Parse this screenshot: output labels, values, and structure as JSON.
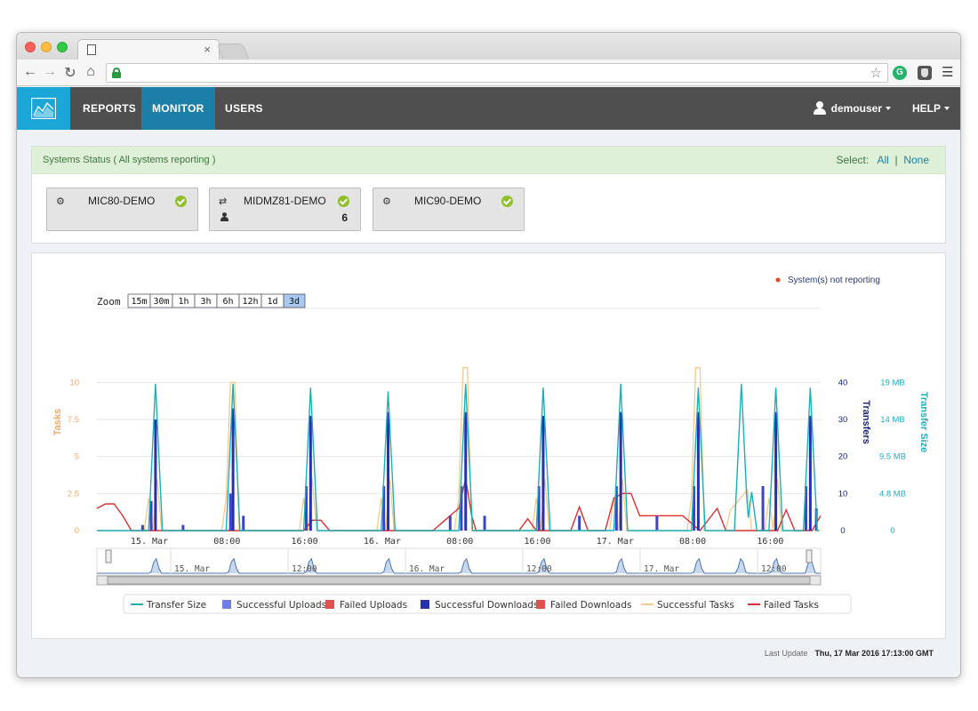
{
  "nav": {
    "items": [
      "REPORTS",
      "MONITOR",
      "USERS"
    ],
    "active": "MONITOR",
    "user": "demouser",
    "help": "HELP"
  },
  "status": {
    "text": "Systems Status ( All systems reporting )",
    "select_label": "Select:",
    "select_all": "All",
    "select_sep": "|",
    "select_none": "None",
    "systems": [
      {
        "name": "MIC80-DEMO",
        "icon": "gears-icon",
        "ok": true
      },
      {
        "name": "MIDMZ81-DEMO",
        "icon": "exchange-icon",
        "ok": true,
        "users": "6"
      },
      {
        "name": "MIC90-DEMO",
        "icon": "gears-icon",
        "ok": true
      }
    ]
  },
  "chart_data": {
    "type": "line",
    "not_reporting_label": "System(s) not reporting",
    "zoom_label": "Zoom",
    "zoom_options": [
      "15m",
      "30m",
      "1h",
      "3h",
      "6h",
      "12h",
      "1d",
      "3d"
    ],
    "zoom_selected": "3d",
    "x_tick_labels": [
      "15. Mar",
      "08:00",
      "16:00",
      "16. Mar",
      "08:00",
      "16:00",
      "17. Mar",
      "08:00",
      "16:00"
    ],
    "navigator_labels": [
      "15. Mar",
      "12:00",
      "16. Mar",
      "12:00",
      "17. Mar",
      "12:00"
    ],
    "y_axes": [
      {
        "label": "Tasks",
        "ticks": [
          "0",
          "2.5",
          "5",
          "7.5",
          "10"
        ],
        "max": 12,
        "color": "#f0a868"
      },
      {
        "label": "Transfers",
        "ticks": [
          "0",
          "10",
          "20",
          "30",
          "40"
        ],
        "max": 48,
        "color": "#1a237e"
      },
      {
        "label": "Transfer Size",
        "ticks": [
          "0",
          "4.8 MB",
          "9.5 MB",
          "14 MB",
          "19 MB"
        ],
        "max": 23,
        "color": "#1ab0c0"
      }
    ],
    "legend": [
      {
        "name": "Transfer Size",
        "color": "#1ab0b8",
        "kind": "line"
      },
      {
        "name": "Successful Uploads",
        "color": "#6f7fe8",
        "kind": "box"
      },
      {
        "name": "Failed Uploads",
        "color": "#e05050",
        "kind": "box"
      },
      {
        "name": "Successful Downloads",
        "color": "#2830b0",
        "kind": "box"
      },
      {
        "name": "Failed Downloads",
        "color": "#e05050",
        "kind": "box"
      },
      {
        "name": "Successful Tasks",
        "color": "#f8c88a",
        "kind": "line"
      },
      {
        "name": "Failed Tasks",
        "color": "#d83030",
        "kind": "line"
      }
    ],
    "x_range_hours": [
      0,
      72
    ],
    "transfer_size_peaks": [
      {
        "x": 6.8,
        "y": 19
      },
      {
        "x": 15.8,
        "y": 19
      },
      {
        "x": 24.8,
        "y": 18.5
      },
      {
        "x": 33.8,
        "y": 18
      },
      {
        "x": 42.8,
        "y": 19
      },
      {
        "x": 51.8,
        "y": 18.5
      },
      {
        "x": 60.8,
        "y": 19
      },
      {
        "x": 69.8,
        "y": 18.5
      },
      {
        "x": 74.8,
        "y": 19
      },
      {
        "x": 78.8,
        "y": 18.5
      },
      {
        "x": 82.8,
        "y": 18.5
      }
    ],
    "successful_downloads": [
      {
        "x": 6.8,
        "y": 30
      },
      {
        "x": 15.8,
        "y": 33
      },
      {
        "x": 24.8,
        "y": 31
      },
      {
        "x": 33.8,
        "y": 32
      },
      {
        "x": 42.8,
        "y": 32
      },
      {
        "x": 51.8,
        "y": 31
      },
      {
        "x": 60.8,
        "y": 32
      },
      {
        "x": 69.8,
        "y": 32
      },
      {
        "x": 78.8,
        "y": 32
      },
      {
        "x": 82.8,
        "y": 31
      }
    ],
    "successful_tasks_peaks": [
      {
        "x": 15.8,
        "y": 10
      },
      {
        "x": 42.8,
        "y": 11
      },
      {
        "x": 69.8,
        "y": 11
      }
    ]
  },
  "footer": {
    "label": "Last Update",
    "value": "Thu, 17 Mar 2016 17:13:00 GMT"
  }
}
